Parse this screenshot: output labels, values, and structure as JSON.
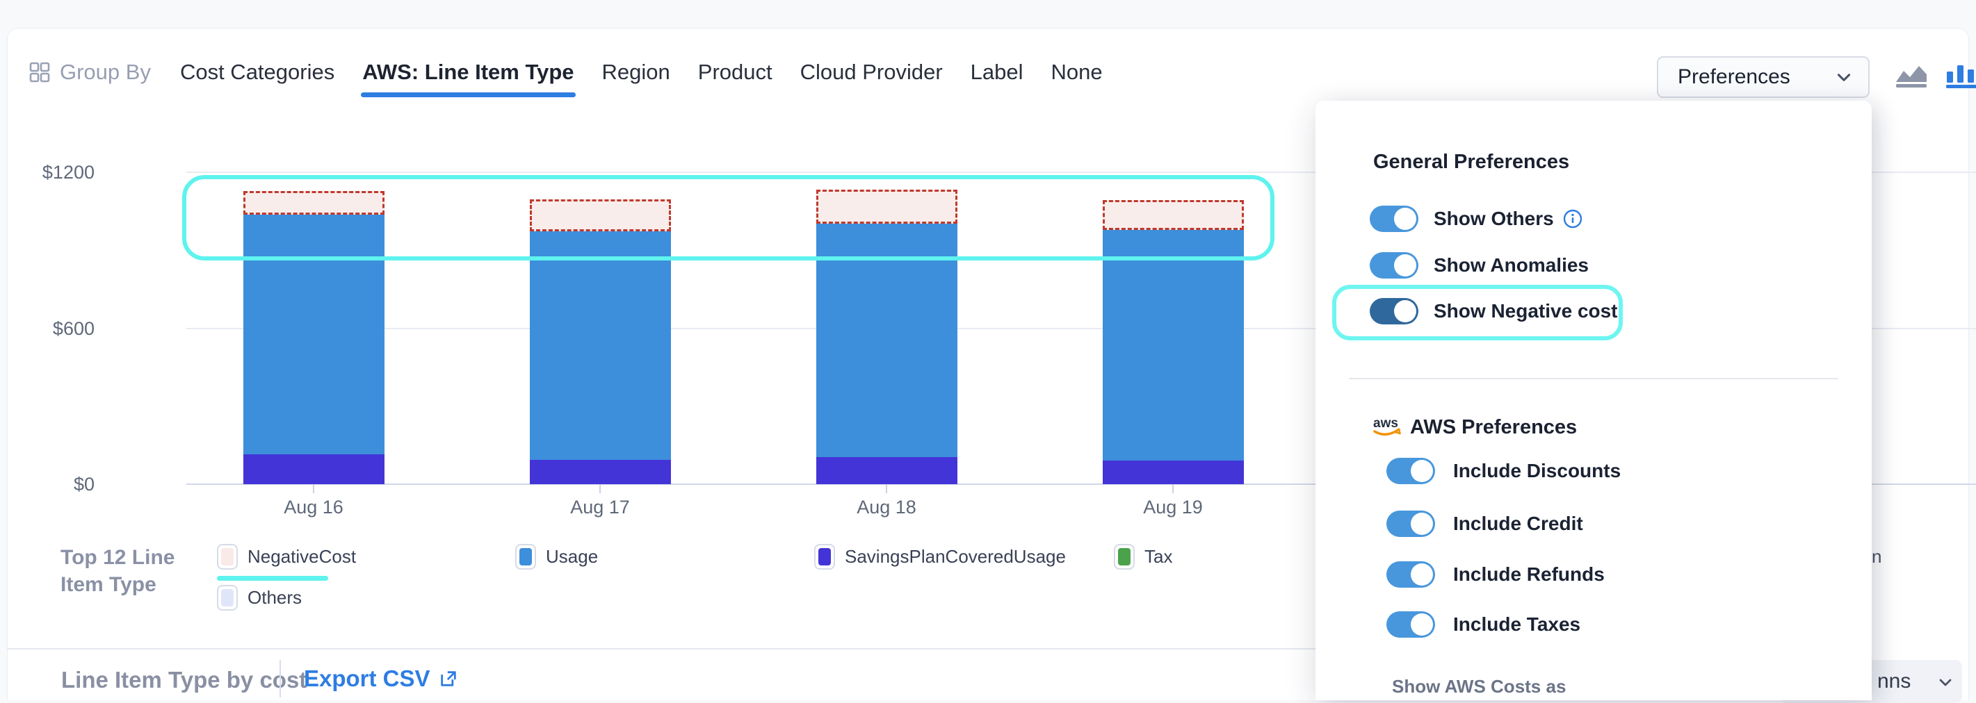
{
  "app": {
    "accent_blue": "#2e7de2",
    "cyan_highlight": "#5ef3ee",
    "toggle_on_color": "#4897dc",
    "toggle_dark_color": "#2f689c"
  },
  "header": {
    "group_by_label": "Group By",
    "tabs": [
      {
        "label": "Cost Categories",
        "active": false
      },
      {
        "label": "AWS: Line Item Type",
        "active": true
      },
      {
        "label": "Region",
        "active": false
      },
      {
        "label": "Product",
        "active": false
      },
      {
        "label": "Cloud Provider",
        "active": false
      },
      {
        "label": "Label",
        "active": false
      },
      {
        "label": "None",
        "active": false
      }
    ],
    "preferences_button_label": "Preferences",
    "chart_type_icons": [
      "area-chart",
      "bar-chart"
    ],
    "active_chart_type": "bar-chart"
  },
  "chart_data": {
    "type": "bar",
    "stacked": true,
    "categories": [
      "Aug 16",
      "Aug 17",
      "Aug 18",
      "Aug 19"
    ],
    "series": [
      {
        "name": "SavingsPlanCoveredUsage",
        "color": "#4334d8",
        "values": [
          115,
          94,
          104,
          91
        ]
      },
      {
        "name": "Usage",
        "color": "#3d8edb",
        "values": [
          922,
          879,
          898,
          887
        ]
      },
      {
        "name": "NegativeCost",
        "color": "#f9edec",
        "border_color": "#c0392b",
        "style": "dashed",
        "values": [
          91,
          123,
          131,
          115
        ]
      }
    ],
    "ylim": [
      0,
      1200
    ],
    "yticks": [
      {
        "value": 0,
        "label": "$0"
      },
      {
        "value": 600,
        "label": "$600"
      },
      {
        "value": 1200,
        "label": "$1200"
      }
    ],
    "grid": true,
    "legend_position": "bottom",
    "annotation": "cyan highlight ring around the NegativeCost (dashed) tops of all bars"
  },
  "legend": {
    "title": "Top 12 Line Item Type",
    "items": [
      {
        "label": "NegativeCost",
        "color": "#f9e9e7",
        "highlighted": true,
        "row": 1
      },
      {
        "label": "Usage",
        "color": "#3d8edb",
        "highlighted": false,
        "row": 1
      },
      {
        "label": "SavingsPlanCoveredUsage",
        "color": "#4334d8",
        "highlighted": false,
        "row": 1
      },
      {
        "label": "Tax",
        "color": "#4ba24b",
        "highlighted": false,
        "row": 1
      },
      {
        "label": "Others",
        "color": "#e0e6fa",
        "highlighted": false,
        "row": 2
      }
    ],
    "overflow_fragment": "n"
  },
  "preferences_panel": {
    "general_section": {
      "title": "General Preferences",
      "toggles": [
        {
          "label": "Show Others",
          "state": "on",
          "has_info_icon": true,
          "highlighted": false,
          "dark": false
        },
        {
          "label": "Show Anomalies",
          "state": "on",
          "has_info_icon": false,
          "highlighted": false,
          "dark": false
        },
        {
          "label": "Show Negative cost",
          "state": "on",
          "has_info_icon": false,
          "highlighted": true,
          "dark": true
        }
      ]
    },
    "aws_section": {
      "title": "AWS Preferences",
      "toggles": [
        {
          "label": "Include Discounts",
          "state": "on"
        },
        {
          "label": "Include Credit",
          "state": "on"
        },
        {
          "label": "Include Refunds",
          "state": "on"
        },
        {
          "label": "Include Taxes",
          "state": "on"
        }
      ],
      "footer_label": "Show AWS Costs as"
    }
  },
  "footer": {
    "title": "Line Item Type by cost",
    "export_csv_label": "Export CSV",
    "columns_button_fragment": "nns"
  }
}
